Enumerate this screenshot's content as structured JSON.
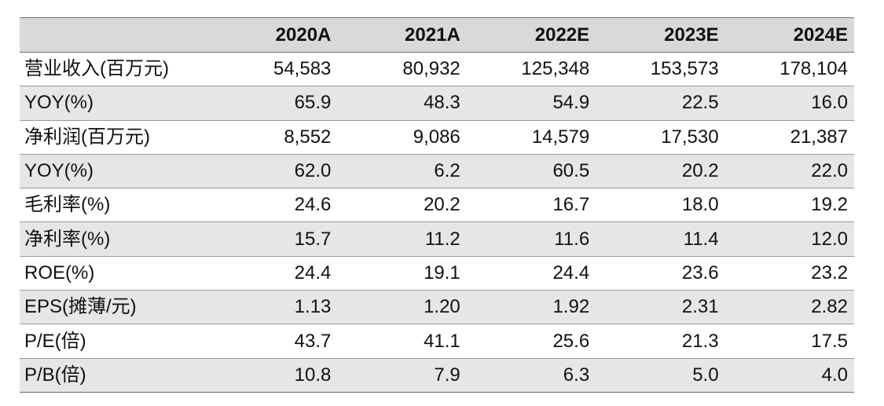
{
  "table": {
    "corner_label": "",
    "columns": [
      "2020A",
      "2021A",
      "2022E",
      "2023E",
      "2024E"
    ],
    "rows": [
      {
        "label": "营业收入(百万元)",
        "values": [
          "54,583",
          "80,932",
          "125,348",
          "153,573",
          "178,104"
        ]
      },
      {
        "label": "YOY(%)",
        "values": [
          "65.9",
          "48.3",
          "54.9",
          "22.5",
          "16.0"
        ]
      },
      {
        "label": "净利润(百万元)",
        "values": [
          "8,552",
          "9,086",
          "14,579",
          "17,530",
          "21,387"
        ]
      },
      {
        "label": "YOY(%)",
        "values": [
          "62.0",
          "6.2",
          "60.5",
          "20.2",
          "22.0"
        ]
      },
      {
        "label": "毛利率(%)",
        "values": [
          "24.6",
          "20.2",
          "16.7",
          "18.0",
          "19.2"
        ]
      },
      {
        "label": "净利率(%)",
        "values": [
          "15.7",
          "11.2",
          "11.6",
          "11.4",
          "12.0"
        ]
      },
      {
        "label": "ROE(%)",
        "values": [
          "24.4",
          "19.1",
          "24.4",
          "23.6",
          "23.2"
        ]
      },
      {
        "label": "EPS(摊薄/元)",
        "values": [
          "1.13",
          "1.20",
          "1.92",
          "2.31",
          "2.82"
        ]
      },
      {
        "label": "P/E(倍)",
        "values": [
          "43.7",
          "41.1",
          "25.6",
          "21.3",
          "17.5"
        ]
      },
      {
        "label": "P/B(倍)",
        "values": [
          "10.8",
          "7.9",
          "6.3",
          "5.0",
          "4.0"
        ]
      }
    ]
  },
  "colors": {
    "header_background": "#d9d9d9",
    "shaded_row_background": "#e6e6e6",
    "text": "#111111"
  }
}
